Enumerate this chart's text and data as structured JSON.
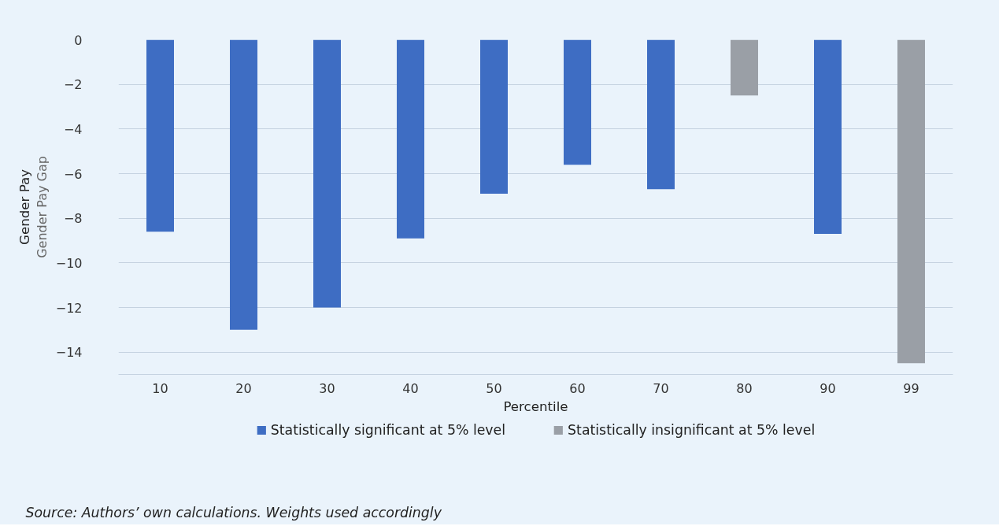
{
  "chart_data": {
    "type": "bar",
    "xlabel": "Percentile",
    "ylabel": "Gender Pay Gap",
    "categories": [
      "10",
      "20",
      "30",
      "40",
      "50",
      "60",
      "70",
      "80",
      "90",
      "99"
    ],
    "series": [
      {
        "name": "Statistically significant at 5% level",
        "color": "#3e6dc3",
        "values": [
          -8.6,
          -13.0,
          -12.0,
          -8.9,
          -6.9,
          -5.6,
          -6.7,
          null,
          -8.7,
          null
        ]
      },
      {
        "name": "Statistically insignificant at 5% level",
        "color": "#9a9fa6",
        "values": [
          null,
          null,
          null,
          null,
          null,
          null,
          null,
          -2.5,
          null,
          -14.5
        ]
      }
    ],
    "ylim": [
      -15,
      0
    ],
    "yticks": [
      0,
      -2,
      -4,
      -6,
      -8,
      -10,
      -12,
      -14
    ],
    "grid": "y",
    "legend": "bottom",
    "annotations": [
      "Gender Pay",
      "Source: Authors’ own calculations. Weights used accordingly"
    ]
  }
}
